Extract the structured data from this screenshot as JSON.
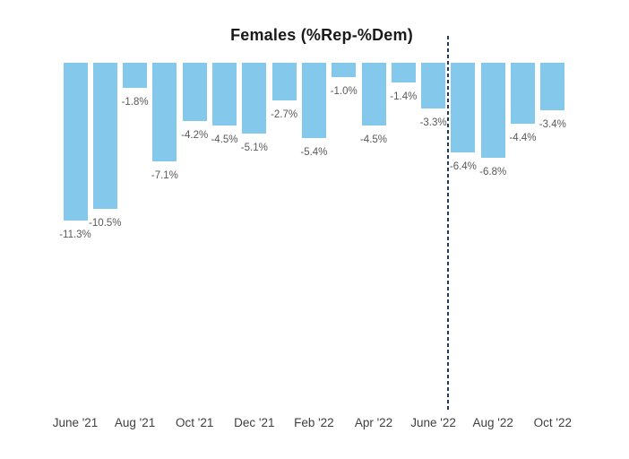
{
  "chart_data": {
    "type": "bar",
    "title": "Females (%Rep-%Dem)",
    "values": [
      -11.3,
      -10.5,
      -1.8,
      -7.1,
      -4.2,
      -4.5,
      -5.1,
      -2.7,
      -5.4,
      -1.0,
      -4.5,
      -1.4,
      -3.3,
      -6.4,
      -6.8,
      -4.4,
      -3.4
    ],
    "data_labels": [
      "-11.3%",
      "-10.5%",
      "-1.8%",
      "-7.1%",
      "-4.2%",
      "-4.5%",
      "-5.1%",
      "-2.7%",
      "-5.4%",
      "-1.0%",
      "-4.5%",
      "-1.4%",
      "-3.3%",
      "-6.4%",
      "-6.8%",
      "-4.4%",
      "-3.4%"
    ],
    "x_tick_labels": [
      "June '21",
      "Aug '21",
      "Oct '21",
      "Dec '21",
      "Feb '22",
      "Apr '22",
      "June '22",
      "Aug '22",
      "Oct '22"
    ],
    "x_ticks_every_n_bars": 2,
    "ylim": [
      -25,
      0
    ],
    "xlabel": "",
    "ylabel": "",
    "grid": false,
    "legend": false,
    "value_axis_visible": false,
    "reference_line": {
      "orientation": "vertical",
      "style": "dashed",
      "between_bar_indices": [
        12,
        13
      ]
    }
  },
  "colors": {
    "bar_fill": "#84C9EC",
    "data_label": "#595959",
    "tick_label": "#3f3f3f",
    "title": "#1a1a1a",
    "reference_line": "#1F3864",
    "background": "#ffffff"
  }
}
